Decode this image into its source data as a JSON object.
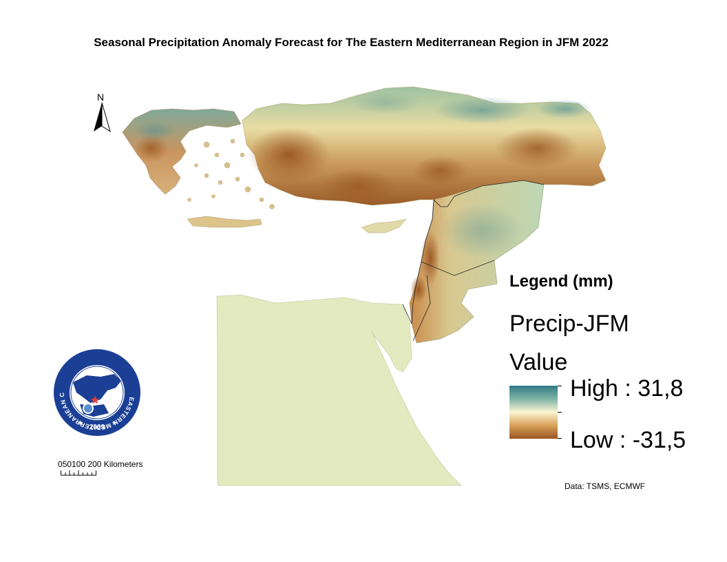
{
  "title": "Seasonal Precipitation Anomaly Forecast for The Eastern Mediterranean Region in JFM 2022",
  "north_arrow": {
    "label": "N",
    "icon": "north-arrow-icon"
  },
  "logo": {
    "ring_text": "EASTERN MEDITERRANEAN CLIMATE CENTRE",
    "year": "2009",
    "colors": {
      "ring": "#1b3f95",
      "inner": "#ffffff"
    }
  },
  "scale_bar": {
    "labels": [
      "0",
      "50",
      "100",
      "200"
    ],
    "unit": "Kilometers"
  },
  "legend": {
    "title": "Legend (mm)",
    "layer_name": "Precip-JFM",
    "field": "Value",
    "high_label": "High : 31,8",
    "low_label": "Low : -31,5",
    "high_value": 31.8,
    "low_value": -31.5,
    "ramp_colors": [
      "#2e7a86",
      "#7fb4a6",
      "#fbf5d0",
      "#d8a15a",
      "#9a5520"
    ]
  },
  "credit": "Data:  TSMS, ECMWF",
  "regions_shown": [
    "Greece",
    "Turkey",
    "Cyprus",
    "Syria",
    "Lebanon",
    "Israel",
    "Palestine",
    "Jordan",
    "Egypt"
  ]
}
